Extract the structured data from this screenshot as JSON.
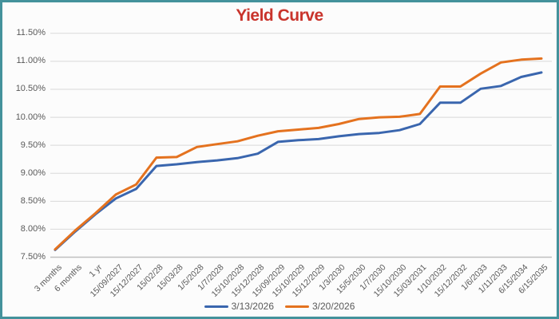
{
  "window": {
    "border_color": "#44929C",
    "background": "#FCFCFC"
  },
  "chart_data": {
    "type": "line",
    "title": "Yield Curve",
    "title_color": "#C9342C",
    "grid": true,
    "legend_position": "bottom",
    "gridline_color": "#D9D9D9",
    "axis_label_color": "#595959",
    "y_axis": {
      "min": 7.5,
      "max": 11.5,
      "step": 0.5,
      "tick_labels": [
        "7.50%",
        "8.00%",
        "8.50%",
        "9.00%",
        "9.50%",
        "10.00%",
        "10.50%",
        "11.00%",
        "11.50%"
      ]
    },
    "categories": [
      "3 months",
      "6 months",
      "1 yr",
      "15/09/2027",
      "15/12/2027",
      "15/02/28",
      "15/03/28",
      "1/5/2028",
      "1/7/2028",
      "15/10/2028",
      "15/12/2028",
      "15/09/2029",
      "15/10/2029",
      "15/12/2029",
      "1/3/2030",
      "15/5/2030",
      "1/7/2030",
      "15/10/2030",
      "15/03/2031",
      "1/10/2032",
      "15/12/2032",
      "1/6/2033",
      "1/11/2033",
      "6/15/2034",
      "6/15/2035"
    ],
    "series": [
      {
        "name": "3/13/2026",
        "color": "#3A66AE",
        "values": [
          7.63,
          7.96,
          8.27,
          8.55,
          8.72,
          9.13,
          9.16,
          9.2,
          9.23,
          9.27,
          9.35,
          9.56,
          9.59,
          9.61,
          9.66,
          9.7,
          9.72,
          9.77,
          9.88,
          10.26,
          10.26,
          10.51,
          10.56,
          10.72,
          10.8
        ]
      },
      {
        "name": "3/20/2026",
        "color": "#E4721F",
        "values": [
          7.64,
          7.98,
          8.29,
          8.62,
          8.8,
          9.28,
          9.29,
          9.47,
          9.52,
          9.57,
          9.67,
          9.75,
          9.78,
          9.81,
          9.88,
          9.97,
          10.0,
          10.01,
          10.06,
          10.55,
          10.55,
          10.78,
          10.98,
          11.03,
          11.05
        ]
      }
    ]
  }
}
